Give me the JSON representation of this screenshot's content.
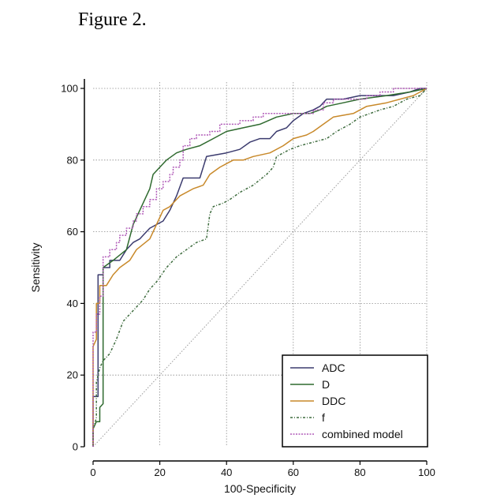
{
  "figure_title": "Figure 2.",
  "chart_data": {
    "type": "line",
    "title": "",
    "xlabel": "100-Specificity",
    "ylabel": "Sensitivity",
    "xlim": [
      0,
      100
    ],
    "ylim": [
      0,
      100
    ],
    "xticks": [
      0,
      20,
      40,
      60,
      80,
      100
    ],
    "yticks": [
      0,
      20,
      40,
      60,
      80,
      100
    ],
    "grid": true,
    "legend_position": "bottom-right",
    "reference_line": {
      "from": [
        0,
        0
      ],
      "to": [
        100,
        100
      ],
      "style": "dotted",
      "color": "#9a9a9a"
    },
    "series": [
      {
        "name": "ADC",
        "color": "#3b3b6e",
        "style": "step",
        "points": [
          [
            0,
            0
          ],
          [
            0,
            14
          ],
          [
            1.5,
            14
          ],
          [
            1.5,
            48
          ],
          [
            3,
            48
          ],
          [
            3,
            50
          ],
          [
            5,
            50
          ],
          [
            5,
            52
          ],
          [
            8,
            52
          ],
          [
            10,
            55
          ],
          [
            12,
            57
          ],
          [
            14,
            58
          ],
          [
            15,
            59
          ],
          [
            17,
            61
          ],
          [
            19,
            62
          ],
          [
            21,
            63
          ],
          [
            23,
            66
          ],
          [
            25,
            70
          ],
          [
            27,
            75
          ],
          [
            32,
            75
          ],
          [
            34,
            81
          ],
          [
            40,
            82
          ],
          [
            44,
            83
          ],
          [
            47,
            85
          ],
          [
            50,
            86
          ],
          [
            53,
            86
          ],
          [
            55,
            88
          ],
          [
            58,
            89
          ],
          [
            60,
            91
          ],
          [
            63,
            93
          ],
          [
            66,
            94
          ],
          [
            68,
            95
          ],
          [
            70,
            97
          ],
          [
            75,
            97
          ],
          [
            80,
            98
          ],
          [
            90,
            98
          ],
          [
            95,
            99
          ],
          [
            98,
            100
          ],
          [
            100,
            100
          ]
        ]
      },
      {
        "name": "D",
        "color": "#2f6a2f",
        "style": "line",
        "points": [
          [
            0,
            0
          ],
          [
            0,
            5
          ],
          [
            1,
            7
          ],
          [
            2,
            7
          ],
          [
            2,
            11
          ],
          [
            3,
            12
          ],
          [
            3,
            50
          ],
          [
            6,
            52
          ],
          [
            10,
            55
          ],
          [
            12,
            62
          ],
          [
            14,
            66
          ],
          [
            17,
            72
          ],
          [
            18,
            76
          ],
          [
            20,
            78
          ],
          [
            22,
            80
          ],
          [
            25,
            82
          ],
          [
            28,
            83
          ],
          [
            32,
            84
          ],
          [
            36,
            86
          ],
          [
            40,
            88
          ],
          [
            45,
            89
          ],
          [
            50,
            90
          ],
          [
            55,
            92
          ],
          [
            60,
            93
          ],
          [
            65,
            93
          ],
          [
            68,
            94
          ],
          [
            70,
            95
          ],
          [
            75,
            96
          ],
          [
            80,
            97
          ],
          [
            88,
            98
          ],
          [
            95,
            99
          ],
          [
            100,
            100
          ]
        ]
      },
      {
        "name": "DDC",
        "color": "#c8892a",
        "style": "step",
        "points": [
          [
            0,
            0
          ],
          [
            0,
            28
          ],
          [
            1,
            30
          ],
          [
            1,
            40
          ],
          [
            2,
            40
          ],
          [
            2,
            45
          ],
          [
            4,
            45
          ],
          [
            6,
            48
          ],
          [
            8,
            50
          ],
          [
            11,
            52
          ],
          [
            13,
            55
          ],
          [
            17,
            58
          ],
          [
            19,
            62
          ],
          [
            21,
            66
          ],
          [
            23,
            67
          ],
          [
            26,
            70
          ],
          [
            30,
            72
          ],
          [
            33,
            73
          ],
          [
            35,
            76
          ],
          [
            38,
            78
          ],
          [
            40,
            79
          ],
          [
            42,
            80
          ],
          [
            45,
            80
          ],
          [
            48,
            81
          ],
          [
            53,
            82
          ],
          [
            57,
            84
          ],
          [
            60,
            86
          ],
          [
            64,
            87
          ],
          [
            66,
            88
          ],
          [
            69,
            90
          ],
          [
            72,
            92
          ],
          [
            78,
            93
          ],
          [
            82,
            95
          ],
          [
            88,
            96
          ],
          [
            92,
            97
          ],
          [
            96,
            98
          ],
          [
            100,
            100
          ]
        ]
      },
      {
        "name": "f",
        "color": "#3d6b3d",
        "style": "dash-dot",
        "points": [
          [
            0,
            0
          ],
          [
            0,
            5
          ],
          [
            1,
            8
          ],
          [
            1,
            18
          ],
          [
            2,
            22
          ],
          [
            3,
            24
          ],
          [
            5,
            26
          ],
          [
            7,
            30
          ],
          [
            9,
            35
          ],
          [
            12,
            38
          ],
          [
            15,
            41
          ],
          [
            17,
            44
          ],
          [
            19,
            46
          ],
          [
            22,
            50
          ],
          [
            25,
            53
          ],
          [
            28,
            55
          ],
          [
            31,
            57
          ],
          [
            34,
            58
          ],
          [
            35,
            65
          ],
          [
            36,
            67
          ],
          [
            39,
            68
          ],
          [
            41,
            69
          ],
          [
            44,
            71
          ],
          [
            48,
            73
          ],
          [
            52,
            76
          ],
          [
            54,
            78
          ],
          [
            55,
            81
          ],
          [
            59,
            83
          ],
          [
            62,
            84
          ],
          [
            66,
            85
          ],
          [
            70,
            86
          ],
          [
            73,
            88
          ],
          [
            77,
            90
          ],
          [
            80,
            92
          ],
          [
            83,
            93
          ],
          [
            86,
            94
          ],
          [
            90,
            95
          ],
          [
            94,
            97
          ],
          [
            98,
            98
          ],
          [
            100,
            100
          ]
        ]
      },
      {
        "name": "combined model",
        "color": "#b05ab8",
        "style": "dotted-step",
        "points": [
          [
            0,
            0
          ],
          [
            0,
            32
          ],
          [
            1,
            32
          ],
          [
            1,
            37
          ],
          [
            2,
            37
          ],
          [
            2,
            42
          ],
          [
            3,
            42
          ],
          [
            3,
            53
          ],
          [
            5,
            53
          ],
          [
            5,
            55
          ],
          [
            7,
            55
          ],
          [
            7,
            57
          ],
          [
            8,
            57
          ],
          [
            8,
            59
          ],
          [
            10,
            59
          ],
          [
            10,
            61
          ],
          [
            12,
            61
          ],
          [
            12,
            63
          ],
          [
            13,
            63
          ],
          [
            13,
            65
          ],
          [
            15,
            65
          ],
          [
            15,
            67
          ],
          [
            17,
            67
          ],
          [
            17,
            69
          ],
          [
            19,
            69
          ],
          [
            19,
            72
          ],
          [
            21,
            72
          ],
          [
            21,
            74
          ],
          [
            23,
            74
          ],
          [
            23,
            76
          ],
          [
            24,
            76
          ],
          [
            24,
            78
          ],
          [
            26,
            78
          ],
          [
            26,
            80
          ],
          [
            27,
            80
          ],
          [
            27,
            84
          ],
          [
            29,
            84
          ],
          [
            29,
            86
          ],
          [
            31,
            86
          ],
          [
            31,
            87
          ],
          [
            35,
            87
          ],
          [
            35,
            88
          ],
          [
            38,
            88
          ],
          [
            38,
            90
          ],
          [
            44,
            90
          ],
          [
            44,
            91
          ],
          [
            48,
            91
          ],
          [
            48,
            92
          ],
          [
            51,
            92
          ],
          [
            51,
            93
          ],
          [
            66,
            93
          ],
          [
            66,
            94
          ],
          [
            69,
            94
          ],
          [
            69,
            96
          ],
          [
            72,
            96
          ],
          [
            72,
            97
          ],
          [
            82,
            97
          ],
          [
            82,
            98
          ],
          [
            86,
            98
          ],
          [
            86,
            99
          ],
          [
            90,
            99
          ],
          [
            90,
            100
          ],
          [
            100,
            100
          ]
        ]
      }
    ]
  }
}
